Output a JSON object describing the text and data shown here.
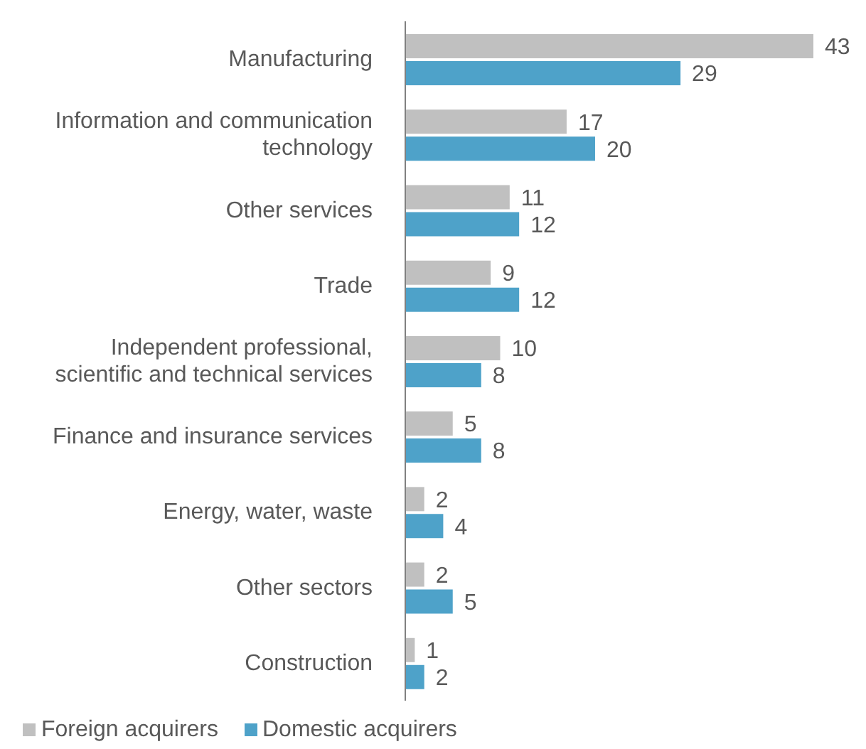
{
  "chart_data": {
    "type": "bar",
    "orientation": "horizontal",
    "categories": [
      "Manufacturing",
      "Information and communication technology",
      "Other services",
      "Trade",
      "Independent professional, scientific and technical services",
      "Finance and insurance services",
      "Energy, water, waste",
      "Other sectors",
      "Construction"
    ],
    "series": [
      {
        "name": "Foreign acquirers",
        "color": "#c0c0c0",
        "values": [
          43,
          17,
          11,
          9,
          10,
          5,
          2,
          2,
          1
        ]
      },
      {
        "name": "Domestic acquirers",
        "color": "#4ea2c9",
        "values": [
          29,
          20,
          12,
          12,
          8,
          8,
          4,
          5,
          2
        ]
      }
    ],
    "data_labels": true,
    "legend": "bottom left",
    "grid": false
  }
}
